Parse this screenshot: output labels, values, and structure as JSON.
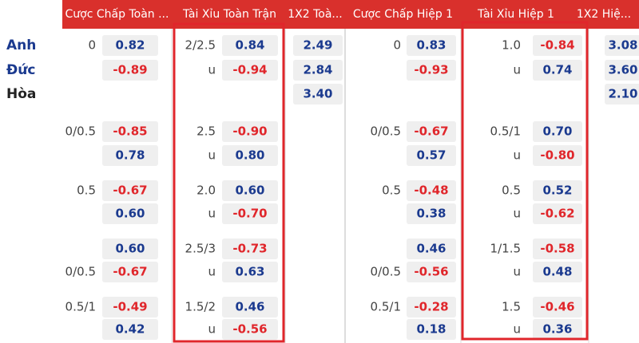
{
  "header": {
    "columns": [
      "Cược Chấp Toàn ...",
      "Tài Xỉu Toàn Trận",
      "1X2 Toà...",
      "Cược Chấp Hiệp 1",
      "Tài Xỉu Hiệp 1",
      "1X2 Hiệ..."
    ]
  },
  "teams": [
    "Anh",
    "Đức",
    "Hòa"
  ],
  "groups": [
    {
      "handicap_full": [
        {
          "line": "0",
          "odds": "0.82"
        },
        {
          "odds": "-0.89"
        }
      ],
      "ou_full": [
        {
          "line": "2/2.5",
          "odds": "0.84"
        },
        {
          "line": "u",
          "odds": "-0.94"
        }
      ],
      "x12_full": [
        {
          "odds": "2.49"
        },
        {
          "odds": "2.84"
        },
        {
          "odds": "3.40"
        }
      ],
      "handicap_half": [
        {
          "line": "0",
          "odds": "0.83"
        },
        {
          "odds": "-0.93"
        }
      ],
      "ou_half": [
        {
          "line": "1.0",
          "odds": "-0.84"
        },
        {
          "line": "u",
          "odds": "0.74"
        }
      ],
      "x12_half": [
        {
          "odds": "3.08"
        },
        {
          "odds": "3.60"
        },
        {
          "odds": "2.10"
        }
      ]
    },
    {
      "handicap_full": [
        {
          "line": "0/0.5",
          "odds": "-0.85"
        },
        {
          "odds": "0.78"
        }
      ],
      "ou_full": [
        {
          "line": "2.5",
          "odds": "-0.90"
        },
        {
          "line": "u",
          "odds": "0.80"
        }
      ],
      "handicap_half": [
        {
          "line": "0/0.5",
          "odds": "-0.67"
        },
        {
          "odds": "0.57"
        }
      ],
      "ou_half": [
        {
          "line": "0.5/1",
          "odds": "0.70"
        },
        {
          "line": "u",
          "odds": "-0.80"
        }
      ]
    },
    {
      "handicap_full": [
        {
          "line": "0.5",
          "odds": "-0.67"
        },
        {
          "odds": "0.60"
        }
      ],
      "ou_full": [
        {
          "line": "2.0",
          "odds": "0.60"
        },
        {
          "line": "u",
          "odds": "-0.70"
        }
      ],
      "handicap_half": [
        {
          "line": "0.5",
          "odds": "-0.48"
        },
        {
          "odds": "0.38"
        }
      ],
      "ou_half": [
        {
          "line": "0.5",
          "odds": "0.52"
        },
        {
          "line": "u",
          "odds": "-0.62"
        }
      ]
    },
    {
      "handicap_full": [
        {
          "odds": "0.60"
        },
        {
          "line": "0/0.5",
          "odds": "-0.67"
        }
      ],
      "ou_full": [
        {
          "line": "2.5/3",
          "odds": "-0.73"
        },
        {
          "line": "u",
          "odds": "0.63"
        }
      ],
      "handicap_half": [
        {
          "odds": "0.46"
        },
        {
          "line": "0/0.5",
          "odds": "-0.56"
        }
      ],
      "ou_half": [
        {
          "line": "1/1.5",
          "odds": "-0.58"
        },
        {
          "line": "u",
          "odds": "0.48"
        }
      ]
    },
    {
      "handicap_full": [
        {
          "line": "0.5/1",
          "odds": "-0.49"
        },
        {
          "odds": "0.42"
        }
      ],
      "ou_full": [
        {
          "line": "1.5/2",
          "odds": "0.46"
        },
        {
          "line": "u",
          "odds": "-0.56"
        }
      ],
      "handicap_half": [
        {
          "line": "0.5/1",
          "odds": "-0.28"
        },
        {
          "odds": "0.18"
        }
      ],
      "ou_half": [
        {
          "line": "1.5",
          "odds": "-0.46"
        },
        {
          "line": "u",
          "odds": "0.36"
        }
      ]
    }
  ]
}
